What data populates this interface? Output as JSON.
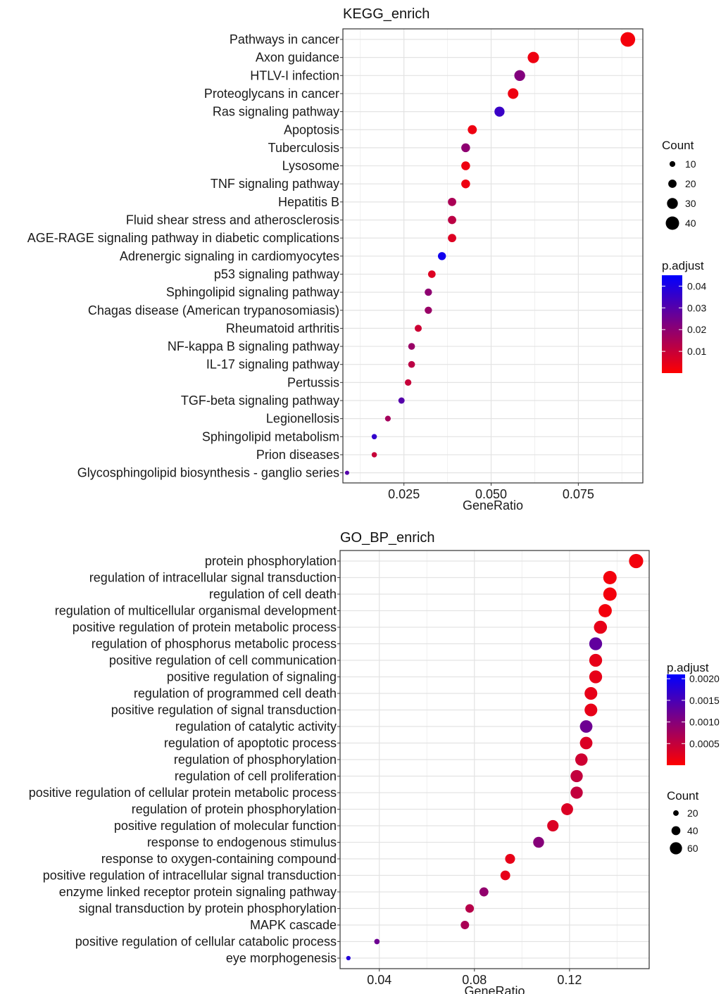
{
  "chart_data": [
    {
      "type": "scatter",
      "title": "KEGG_enrich",
      "xlabel": "GeneRatio",
      "ylabel": "",
      "xlim": [
        0.0075,
        0.0935
      ],
      "x_ticks": [
        0.025,
        0.05,
        0.075
      ],
      "x_tick_labels": [
        "0.025",
        "0.050",
        "0.075"
      ],
      "grid": true,
      "color_by": "p.adjust",
      "size_by": "Count",
      "color_scale": {
        "low": "#ff0000",
        "high": "#0000ff",
        "min": 0,
        "max": 0.045,
        "ticks": [
          0.04,
          0.03,
          0.02,
          0.01
        ],
        "tick_labels": [
          "0.04",
          "0.03",
          "0.02",
          "0.01"
        ]
      },
      "color_legend_title": "p.adjust",
      "size_legend_title": "Count",
      "size_legend": [
        10,
        20,
        30,
        40
      ],
      "size_legend_labels": [
        "10",
        "20",
        "30",
        "40"
      ],
      "legend_order": [
        "size",
        "color"
      ],
      "categories": [
        "Pathways in cancer",
        "Axon guidance",
        "HTLV-I infection",
        "Proteoglycans in cancer",
        "Ras signaling pathway",
        "Apoptosis",
        "Tuberculosis",
        "Lysosome",
        "TNF signaling pathway",
        "Hepatitis B",
        "Fluid shear stress and atherosclerosis",
        "AGE-RAGE signaling pathway in diabetic complications",
        "Adrenergic signaling in cardiomyocytes",
        "p53 signaling pathway",
        "Sphingolipid signaling pathway",
        "Chagas disease (American trypanosomiasis)",
        "Rheumatoid arthritis",
        "NF-kappa B signaling pathway",
        "IL-17 signaling pathway",
        "Pertussis",
        "TGF-beta signaling pathway",
        "Legionellosis",
        "Sphingolipid metabolism",
        "Prion diseases",
        "Glycosphingolipid biosynthesis - ganglio series"
      ],
      "x": [
        0.0892,
        0.0621,
        0.0582,
        0.0563,
        0.0524,
        0.0446,
        0.0427,
        0.0427,
        0.0427,
        0.0388,
        0.0388,
        0.0388,
        0.0359,
        0.033,
        0.032,
        0.032,
        0.0291,
        0.0272,
        0.0272,
        0.0262,
        0.0243,
        0.0204,
        0.0165,
        0.0165,
        0.0087
      ],
      "count": [
        45,
        32,
        30,
        29,
        27,
        23,
        22,
        22,
        22,
        20,
        20,
        20,
        19,
        17,
        16,
        16,
        15,
        14,
        14,
        13,
        12,
        10,
        8,
        8,
        4
      ],
      "p_adjust": [
        0.002,
        0.003,
        0.022,
        0.003,
        0.035,
        0.003,
        0.02,
        0.003,
        0.003,
        0.015,
        0.012,
        0.006,
        0.042,
        0.006,
        0.02,
        0.018,
        0.009,
        0.018,
        0.012,
        0.01,
        0.03,
        0.016,
        0.036,
        0.01,
        0.03
      ]
    },
    {
      "type": "scatter",
      "title": "GO_BP_enrich",
      "xlabel": "GeneRatio",
      "ylabel": "",
      "xlim": [
        0.0235,
        0.1535
      ],
      "x_ticks": [
        0.04,
        0.08,
        0.12
      ],
      "x_tick_labels": [
        "0.04",
        "0.08",
        "0.12"
      ],
      "grid": true,
      "color_by": "p.adjust",
      "size_by": "Count",
      "color_scale": {
        "low": "#ff0000",
        "high": "#0000ff",
        "min": 0,
        "max": 0.0021,
        "ticks": [
          0.002,
          0.0015,
          0.001,
          0.0005
        ],
        "tick_labels": [
          "0.0020",
          "0.0015",
          "0.0010",
          "0.0005"
        ]
      },
      "color_legend_title": "p.adjust",
      "size_legend_title": "Count",
      "size_legend": [
        20,
        40,
        60
      ],
      "size_legend_labels": [
        "20",
        "40",
        "60"
      ],
      "legend_order": [
        "color",
        "size"
      ],
      "categories": [
        "protein phosphorylation",
        "regulation of intracellular signal transduction",
        "regulation of cell death",
        "regulation of multicellular organismal development",
        "positive regulation of protein metabolic process",
        "regulation of phosphorus metabolic process",
        "positive regulation of cell communication",
        "positive regulation of signaling",
        "regulation of programmed cell death",
        "positive regulation of signal transduction",
        "regulation of catalytic activity",
        "regulation of apoptotic process",
        "regulation of phosphorylation",
        "regulation of cell proliferation",
        "positive regulation of cellular protein metabolic process",
        "regulation of protein phosphorylation",
        "positive regulation of molecular function",
        "response to endogenous stimulus",
        "response to oxygen-containing compound",
        "positive regulation of intracellular signal transduction",
        "enzyme linked receptor protein signaling pathway",
        "signal transduction by protein phosphorylation",
        "MAPK cascade",
        "positive regulation of cellular catabolic process",
        "eye morphogenesis"
      ],
      "x": [
        0.148,
        0.137,
        0.137,
        0.135,
        0.133,
        0.131,
        0.131,
        0.131,
        0.129,
        0.129,
        0.127,
        0.127,
        0.125,
        0.123,
        0.123,
        0.119,
        0.113,
        0.107,
        0.095,
        0.093,
        0.084,
        0.078,
        0.076,
        0.039,
        0.027
      ],
      "count": [
        72,
        67,
        67,
        66,
        65,
        64,
        64,
        64,
        63,
        63,
        62,
        62,
        61,
        60,
        60,
        58,
        55,
        52,
        46,
        45,
        41,
        38,
        37,
        19,
        13
      ],
      "p_adjust": [
        0.0001,
        0.0001,
        0.0001,
        0.0001,
        0.0002,
        0.0013,
        0.0002,
        0.0002,
        0.0002,
        0.0002,
        0.0012,
        0.0003,
        0.0004,
        0.0005,
        0.0005,
        0.0003,
        0.0003,
        0.001,
        0.0002,
        0.0002,
        0.0009,
        0.0006,
        0.0007,
        0.0012,
        0.0018
      ]
    }
  ]
}
